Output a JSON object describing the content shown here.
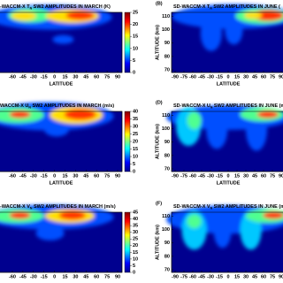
{
  "panels": [
    {
      "title": [
        "-WACCM-X T",
        "N",
        " SW2 AMPLITUDES IN MARCH (K)"
      ],
      "xlabel": "LATITUDE",
      "xticks": [
        -60,
        -45,
        -30,
        -15,
        0,
        15,
        30,
        45,
        60,
        75,
        90
      ],
      "colorbar_ticks": [
        0,
        5,
        10,
        15,
        20,
        25
      ]
    },
    {
      "label": "(B)",
      "title": [
        "SD-WACCM-X T",
        "N",
        " SW2 AMPLITUDES IN JUNE ("
      ],
      "xlabel": "LATITUDE",
      "ylabel": "ALTITUDE (km)",
      "xticks": [
        -90,
        -75,
        -60,
        -45,
        -30,
        -15,
        0,
        15,
        30,
        45,
        60,
        75,
        90
      ],
      "yticks": [
        70,
        80,
        90,
        100,
        110
      ],
      "ylim": [
        68,
        113
      ]
    },
    {
      "title": [
        "WACCM-X U",
        "N",
        " SW2 AMPLITUDES IN MARCH (m/s)"
      ],
      "xlabel": "LATITUDE",
      "xticks": [
        -60,
        -45,
        -30,
        -15,
        0,
        15,
        30,
        45,
        60,
        75,
        90
      ],
      "colorbar_ticks": [
        0,
        5,
        10,
        15,
        20,
        25,
        30,
        35,
        40
      ]
    },
    {
      "label": "(D)",
      "title": [
        "SD-WACCM-X U",
        "N",
        " SW2 AMPLITUDES IN JUNE (m"
      ],
      "xlabel": "LATITUDE",
      "ylabel": "ALTITUDE (km)",
      "xticks": [
        -90,
        -75,
        -60,
        -45,
        -30,
        -15,
        0,
        15,
        30,
        45,
        60,
        75,
        90
      ],
      "yticks": [
        70,
        80,
        90,
        100,
        110
      ],
      "ylim": [
        68,
        113
      ]
    },
    {
      "title": [
        "-WACCM-X V",
        "N",
        " SW2 AMPLITUDES IN MARCH (m/s)"
      ],
      "xticks": [
        -60,
        -45,
        -30,
        -15,
        0,
        15,
        30,
        45,
        60,
        75,
        90
      ],
      "colorbar_ticks": [
        0,
        5,
        10,
        15,
        20,
        25,
        30,
        35,
        40,
        45
      ]
    },
    {
      "label": "(F)",
      "title": [
        "SD-WACCM-X V",
        "N",
        " SW2 AMPLITUDES IN JUNE (m/s)"
      ],
      "ylabel": "ALTITUDE (km)",
      "xticks": [
        -90,
        -75,
        -60,
        -45,
        -30,
        -15,
        0,
        15,
        30,
        45,
        60,
        75,
        90
      ],
      "yticks": [
        70,
        80,
        90,
        100,
        110
      ],
      "ylim": [
        68,
        113
      ]
    }
  ]
}
